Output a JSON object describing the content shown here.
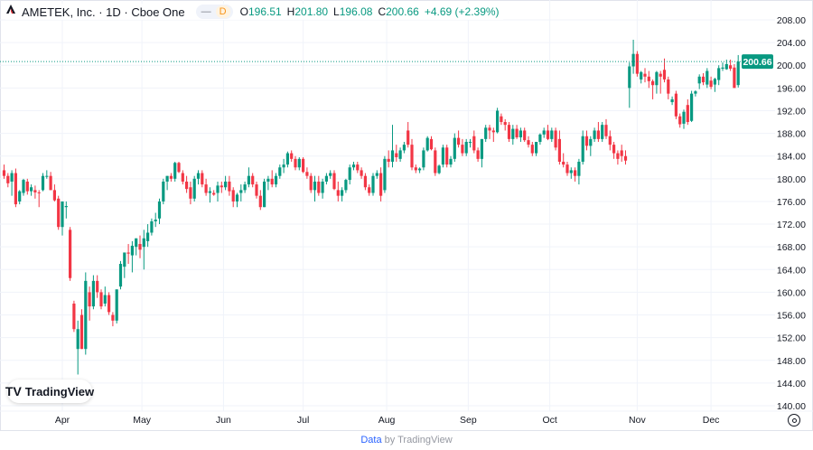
{
  "header": {
    "symbol_title": "AMETEK, Inc. · 1D · Cboe One",
    "pill_dash": "—",
    "pill_interval": "D",
    "ohlc": {
      "o_label": "O",
      "o": "196.51",
      "h_label": "H",
      "h": "201.80",
      "l_label": "L",
      "l": "196.08",
      "c_label": "C",
      "c": "200.66"
    },
    "change": "+4.69 (+2.39%)"
  },
  "logo": {
    "text": "TradingView",
    "mark": "TV"
  },
  "footer": {
    "link": "Data",
    "rest": "by TradingView"
  },
  "colors": {
    "up": "#089981",
    "down": "#F23645",
    "grid": "#f0f3fa",
    "last_price": "#089981"
  },
  "chart_data": {
    "type": "candlestick",
    "title": "AMETEK, Inc. · 1D · Cboe One",
    "ylim": [
      140,
      208
    ],
    "grid": true,
    "y_ticks": [
      "208.00",
      "204.00",
      "200.00",
      "196.00",
      "192.00",
      "188.00",
      "184.00",
      "180.00",
      "176.00",
      "172.00",
      "168.00",
      "164.00",
      "160.00",
      "156.00",
      "152.00",
      "148.00",
      "144.00",
      "140.00"
    ],
    "x_ticks": [
      {
        "label": "Apr",
        "index": 15
      },
      {
        "label": "May",
        "index": 35.5
      },
      {
        "label": "Jun",
        "index": 56.5
      },
      {
        "label": "Jul",
        "index": 77
      },
      {
        "label": "Aug",
        "index": 98.5
      },
      {
        "label": "Sep",
        "index": 119.5
      },
      {
        "label": "Oct",
        "index": 140.5
      },
      {
        "label": "Nov",
        "index": 163
      },
      {
        "label": "Dec",
        "index": 182
      }
    ],
    "last_price": {
      "value": 200.66,
      "label": "200.66"
    },
    "candles_ohlc": [
      [
        181.5,
        182.5,
        180,
        180.5
      ],
      [
        180.5,
        181,
        178.5,
        179.2
      ],
      [
        179.5,
        181.5,
        177,
        181
      ],
      [
        181,
        181.8,
        175,
        175.5
      ],
      [
        176,
        178,
        175.5,
        177.8
      ],
      [
        177.5,
        180,
        177,
        179.8
      ],
      [
        179.5,
        180,
        177.2,
        177.8
      ],
      [
        177.8,
        179,
        177,
        178.5
      ],
      [
        178,
        178.8,
        176.5,
        177.6
      ],
      [
        177.6,
        178,
        175,
        177.5
      ],
      [
        178,
        181,
        177.8,
        180.5
      ],
      [
        180.5,
        181.5,
        180,
        180.5
      ],
      [
        180.5,
        181.2,
        178,
        178
      ],
      [
        178,
        179,
        176,
        176.2
      ],
      [
        176.5,
        177,
        171,
        171.5
      ],
      [
        171.5,
        176,
        170,
        176
      ],
      [
        175,
        176,
        173,
        175.2
      ],
      [
        171,
        171.5,
        162,
        162.5
      ],
      [
        158,
        158.5,
        153,
        153.5
      ],
      [
        150,
        155,
        145.5,
        153.5
      ],
      [
        156,
        157,
        150,
        150
      ],
      [
        150,
        163.5,
        149,
        162
      ],
      [
        160,
        161,
        155,
        157.5
      ],
      [
        157.5,
        163,
        157,
        162
      ],
      [
        162,
        163,
        159,
        160
      ],
      [
        160,
        160.5,
        157,
        157.5
      ],
      [
        158,
        161,
        157.5,
        159.5
      ],
      [
        159.5,
        160,
        156,
        156.5
      ],
      [
        156,
        156.5,
        154,
        155
      ],
      [
        155,
        160.5,
        154.5,
        160.5
      ],
      [
        161,
        165.5,
        160.5,
        165
      ],
      [
        164.5,
        167,
        162.5,
        167
      ],
      [
        167,
        168.5,
        165,
        166.8
      ],
      [
        166.5,
        169,
        163.5,
        168.2
      ],
      [
        168,
        169.5,
        166.5,
        169.5
      ],
      [
        168.5,
        170,
        166,
        167.5
      ],
      [
        168,
        171,
        164,
        169.5
      ],
      [
        169,
        172,
        168,
        170.5
      ],
      [
        170.5,
        173,
        170,
        172.5
      ],
      [
        172.5,
        174,
        171.5,
        172.8
      ],
      [
        173,
        176.5,
        172,
        176
      ],
      [
        176,
        180,
        175.5,
        179.5
      ],
      [
        179.5,
        180.5,
        178,
        180.5
      ],
      [
        180.5,
        181,
        179.5,
        180
      ],
      [
        180,
        183,
        179.5,
        182.8
      ],
      [
        182.8,
        183,
        181,
        181.2
      ],
      [
        181,
        181.5,
        179,
        179.5
      ],
      [
        179.5,
        180.5,
        177.5,
        178.2
      ],
      [
        178.5,
        179.5,
        175.5,
        176.5
      ],
      [
        176.5,
        180.5,
        176,
        180
      ],
      [
        180,
        181.5,
        179,
        181
      ],
      [
        181,
        181.5,
        178.5,
        179
      ],
      [
        179,
        180,
        177,
        177.5
      ],
      [
        177.5,
        178.5,
        175.8,
        177.8
      ],
      [
        177.5,
        178,
        177,
        177.2
      ],
      [
        177.5,
        179.5,
        176,
        178.8
      ],
      [
        178.8,
        179.5,
        177.5,
        178.5
      ],
      [
        178.5,
        180.5,
        178,
        179.5
      ],
      [
        179.5,
        180.5,
        177,
        177.8
      ],
      [
        178,
        178.5,
        175,
        176
      ],
      [
        176,
        177.5,
        175,
        177.2
      ],
      [
        177.5,
        179,
        176,
        178
      ],
      [
        178,
        179.5,
        177.5,
        179
      ],
      [
        179,
        182,
        178.5,
        180.5
      ],
      [
        180.5,
        181,
        178.5,
        179
      ],
      [
        179,
        179.5,
        176.5,
        177
      ],
      [
        177,
        178,
        174.5,
        175
      ],
      [
        175,
        180,
        175,
        179.5
      ],
      [
        179.5,
        180.5,
        178,
        180
      ],
      [
        180,
        181.5,
        178.5,
        179
      ],
      [
        179,
        181,
        178.5,
        180.5
      ],
      [
        180.5,
        182.5,
        180,
        182
      ],
      [
        182,
        183.5,
        181,
        182.5
      ],
      [
        182.5,
        184.8,
        182,
        184.5
      ],
      [
        184.5,
        185,
        183,
        183.5
      ],
      [
        183.5,
        184,
        181.5,
        182
      ],
      [
        182,
        183.8,
        181.5,
        183.5
      ],
      [
        183.5,
        183.8,
        181,
        181.2
      ],
      [
        181.2,
        182,
        180,
        180.5
      ],
      [
        180.5,
        181,
        177.5,
        178
      ],
      [
        178,
        180.5,
        176,
        179.5
      ],
      [
        179.5,
        180.5,
        177,
        177.5
      ],
      [
        177.5,
        180,
        176.5,
        179.5
      ],
      [
        179.5,
        181,
        179,
        180.5
      ],
      [
        180.5,
        181.5,
        180,
        181
      ],
      [
        181,
        181.5,
        178,
        178.2
      ],
      [
        178,
        179.5,
        176,
        177
      ],
      [
        177,
        178.5,
        176,
        178
      ],
      [
        178,
        180,
        177.5,
        179.8
      ],
      [
        179.8,
        182.5,
        179,
        182
      ],
      [
        182,
        183,
        181.5,
        182.5
      ],
      [
        182.5,
        183,
        181,
        181.5
      ],
      [
        181.5,
        182,
        180,
        180.5
      ],
      [
        180.5,
        181,
        178,
        178.5
      ],
      [
        178.5,
        179,
        177,
        177.5
      ],
      [
        177.5,
        181,
        177,
        180.5
      ],
      [
        180.5,
        181.5,
        180,
        181
      ],
      [
        181,
        182,
        176,
        177
      ],
      [
        178,
        184,
        177.5,
        183.5
      ],
      [
        183.5,
        185,
        182,
        183
      ],
      [
        183,
        189.5,
        182,
        185
      ],
      [
        184.5,
        186,
        183,
        183.8
      ],
      [
        183.5,
        185.5,
        183,
        185
      ],
      [
        185,
        186.5,
        184.5,
        186
      ],
      [
        188.5,
        190,
        185.5,
        186
      ],
      [
        186,
        187,
        181.5,
        182
      ],
      [
        182,
        182.5,
        181,
        181.5
      ],
      [
        181.5,
        182,
        181,
        181.8
      ],
      [
        182,
        185.5,
        181.5,
        185
      ],
      [
        185,
        187.5,
        184.8,
        187.2
      ],
      [
        187,
        187.5,
        185,
        185.2
      ],
      [
        185,
        185.5,
        180.5,
        181
      ],
      [
        181,
        182.5,
        180.8,
        182.3
      ],
      [
        182.5,
        186,
        182,
        185.5
      ],
      [
        185.5,
        186,
        182,
        182.5
      ],
      [
        182.5,
        184,
        182,
        183.5
      ],
      [
        183.5,
        188,
        183,
        187.2
      ],
      [
        187.2,
        188.5,
        185.5,
        186
      ],
      [
        186,
        187,
        184,
        184.5
      ],
      [
        184.5,
        187,
        184,
        186.5
      ],
      [
        186.5,
        187,
        185.5,
        186.5
      ],
      [
        187.5,
        188.5,
        184.5,
        185
      ],
      [
        185,
        185.5,
        183,
        183.5
      ],
      [
        183.5,
        187,
        182,
        187
      ],
      [
        187,
        189.5,
        186.5,
        189
      ],
      [
        189,
        189.5,
        187,
        188.5
      ],
      [
        188.5,
        189,
        186.5,
        188.2
      ],
      [
        188.2,
        192.5,
        188,
        192
      ],
      [
        191,
        191.5,
        189.5,
        190
      ],
      [
        190,
        190.5,
        188.5,
        189.5
      ],
      [
        189.5,
        190,
        186.5,
        187
      ],
      [
        187,
        189.5,
        186,
        188.8
      ],
      [
        188.8,
        189.5,
        187,
        187.3
      ],
      [
        187.3,
        189,
        186.5,
        188.5
      ],
      [
        188.5,
        189,
        186.5,
        186.8
      ],
      [
        186.8,
        187.5,
        185.5,
        186
      ],
      [
        186,
        186.5,
        184,
        184.5
      ],
      [
        184.5,
        186.5,
        184,
        186.5
      ],
      [
        186.5,
        188,
        186,
        187.8
      ],
      [
        187.8,
        189,
        187.2,
        188.5
      ],
      [
        188.5,
        189.5,
        186.8,
        187
      ],
      [
        187,
        189,
        186.5,
        188.5
      ],
      [
        188.5,
        189,
        185,
        185.5
      ],
      [
        187,
        188.5,
        182.5,
        183
      ],
      [
        183,
        184.5,
        182,
        182.5
      ],
      [
        182.5,
        183,
        180.5,
        181
      ],
      [
        181,
        182,
        180,
        181.5
      ],
      [
        181.5,
        182,
        179.5,
        180.5
      ],
      [
        180.5,
        183.5,
        179,
        183
      ],
      [
        183,
        188.5,
        182.5,
        187.5
      ],
      [
        187.5,
        188.5,
        185,
        185.8
      ],
      [
        185.8,
        187.5,
        184,
        187
      ],
      [
        187,
        189,
        186.5,
        188.5
      ],
      [
        188.5,
        190,
        186.5,
        187
      ],
      [
        187,
        190,
        186.5,
        189.5
      ],
      [
        189.5,
        190.5,
        187,
        187.5
      ],
      [
        187.5,
        188.5,
        185,
        186
      ],
      [
        186,
        186.5,
        183.5,
        184.5
      ],
      [
        184.5,
        185,
        182.5,
        183.5
      ],
      [
        185,
        186,
        183,
        184
      ],
      [
        184,
        185,
        182.5,
        183.2
      ],
      [
        196,
        200.5,
        192.5,
        199.8
      ],
      [
        199.8,
        204.5,
        198.5,
        202
      ],
      [
        202,
        202.5,
        198,
        198.5
      ],
      [
        197.5,
        199,
        196.8,
        198.8
      ],
      [
        198.5,
        199.5,
        197,
        198
      ],
      [
        198,
        199,
        196,
        197.2
      ],
      [
        197.2,
        197.5,
        194,
        196.5
      ],
      [
        196.5,
        199,
        195,
        198.8
      ],
      [
        198.5,
        199,
        195,
        198
      ],
      [
        199.2,
        201.2,
        197,
        197.5
      ],
      [
        197.5,
        198,
        194,
        195
      ],
      [
        193.5,
        194.5,
        193,
        194
      ],
      [
        195,
        195.5,
        190.5,
        191
      ],
      [
        191,
        191.5,
        189,
        189.6
      ],
      [
        189.7,
        192.2,
        188.8,
        191.8
      ],
      [
        193,
        194,
        189.5,
        190
      ],
      [
        190.2,
        195.5,
        190,
        195
      ],
      [
        195,
        195.6,
        194.5,
        195.4
      ],
      [
        196.8,
        198.4,
        195.8,
        198
      ],
      [
        198,
        198.6,
        196.5,
        197
      ],
      [
        196.6,
        199.5,
        196,
        199
      ],
      [
        197.3,
        198,
        195.8,
        196.2
      ],
      [
        196.6,
        197.8,
        195.3,
        197.6
      ],
      [
        197.4,
        200,
        196.5,
        199.5
      ],
      [
        199.4,
        200.5,
        199,
        199.6
      ],
      [
        199.3,
        201,
        199.2,
        200.2
      ],
      [
        200,
        201,
        199,
        199.4
      ],
      [
        199.6,
        200.2,
        196,
        196
      ],
      [
        196.51,
        201.8,
        196.08,
        200.66
      ]
    ]
  }
}
